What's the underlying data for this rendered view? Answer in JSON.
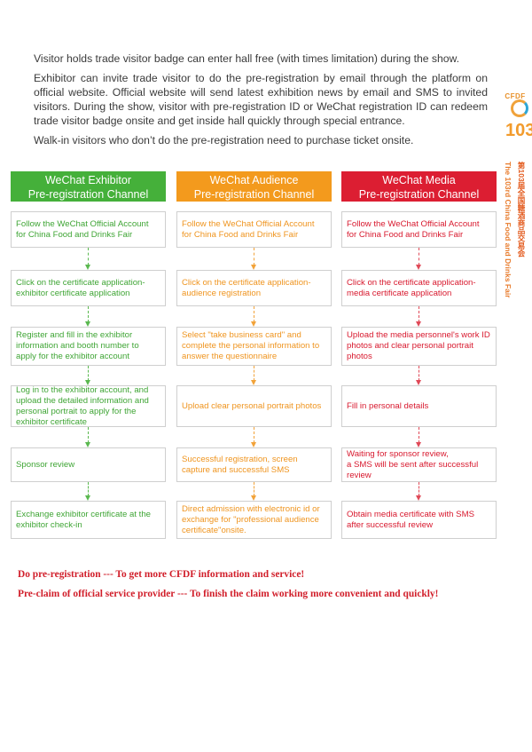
{
  "intro": {
    "p1": "Visitor holds trade visitor badge can enter hall free (with times limitation) during the show.",
    "p2": "Exhibitor can invite trade visitor to do the pre-registration by email through the platform on official website. Official website will send latest exhibition news by email and SMS to invited visitors. During the show, visitor with pre-registration ID or WeChat registration ID can redeem trade visitor badge onsite and get inside hall quickly through special entrance.",
    "p3": "Walk-in visitors who don’t do the pre-registration need to purchase ticket onsite."
  },
  "brand": {
    "cfdf": "CFDF",
    "number": "103",
    "cn": "第103届全国糖酒商品交易会",
    "en": "The 103rd China Food and Drinks Fair"
  },
  "columns": [
    {
      "title_line1": "WeChat Exhibitor",
      "title_line2": "Pre-registration Channel",
      "steps": [
        "Follow the WeChat Official Account for China Food and Drinks Fair",
        "Click on the certificate application-exhibitor certificate application",
        "Register and fill in the exhibitor information and booth number to apply for the exhibitor account",
        "Log in to the exhibitor account, and upload the detailed information and personal portrait to apply for the exhibitor certificate",
        "Sponsor review",
        "Exchange exhibitor certificate at the exhibitor check-in"
      ]
    },
    {
      "title_line1": "WeChat Audience",
      "title_line2": "Pre-registration Channel",
      "steps": [
        "Follow the WeChat Official Account for China Food and Drinks Fair",
        "Click on the certificate application-audience registration",
        "Select \"take business card\" and complete the personal information to answer the questionnaire",
        "Upload clear personal portrait photos",
        "Successful registration, screen capture and successful SMS",
        "Direct admission with electronic id or exchange for \"professional audience certificate\"onsite."
      ]
    },
    {
      "title_line1": "WeChat Media",
      "title_line2": "Pre-registration Channel",
      "steps": [
        "Follow the WeChat Official Account for China Food and Drinks Fair",
        "Click on the certificate application-media certificate application",
        "Upload the media personnel's work ID photos and clear personal portrait photos",
        "Fill in personal details",
        "Waiting for sponsor review,\na SMS will be sent after successful review",
        "Obtain media certificate with SMS after successful review"
      ]
    }
  ],
  "footer": {
    "line1": "Do pre-registration --- To get more CFDF information and service!",
    "line2": "Pre-claim of official service provider --- To finish the claim working more convenient and quickly!"
  },
  "colors": {
    "green": "#45b03a",
    "orange": "#f39a1d",
    "red": "#dc1e32"
  }
}
